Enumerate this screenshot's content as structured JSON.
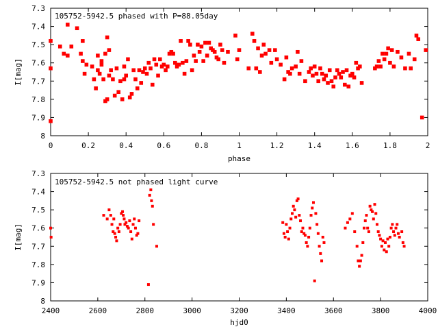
{
  "chart_data": [
    {
      "type": "scatter",
      "title": "105752-5942.5 phased with P=88.05day",
      "xlabel": "phase",
      "ylabel": "I[mag]",
      "xlim": [
        0,
        2
      ],
      "ylim": [
        8.0,
        7.3
      ],
      "y_inverted": true,
      "xticks": [
        "0",
        "0.2",
        "0.4",
        "0.6",
        "0.8",
        "1",
        "1.2",
        "1.4",
        "1.6",
        "1.8",
        "2"
      ],
      "yticks": [
        "7.3",
        "7.4",
        "7.5",
        "7.6",
        "7.7",
        "7.8",
        "7.9",
        "8"
      ],
      "grid": false,
      "legend": "none",
      "marker_color": "#ff0000",
      "series": [
        {
          "x": [
            0.0,
            0.0,
            0.0,
            0.05,
            0.07,
            0.09,
            0.09,
            0.11,
            0.14,
            0.16,
            0.17,
            0.17,
            0.18,
            0.19,
            0.22,
            0.23,
            0.24,
            0.25,
            0.25,
            0.26,
            0.27,
            0.27,
            0.28,
            0.29,
            0.29,
            0.3,
            0.3,
            0.31,
            0.31,
            0.32,
            0.33,
            0.34,
            0.35,
            0.36,
            0.37,
            0.38,
            0.39,
            0.39,
            0.4,
            0.41,
            0.42,
            0.43,
            0.44,
            0.45,
            0.46,
            0.47,
            0.48,
            0.49,
            0.5,
            0.51,
            0.52,
            0.53,
            0.54,
            0.55,
            0.56,
            0.57,
            0.58,
            0.59,
            0.6,
            0.61,
            0.62,
            0.63,
            0.64,
            0.65,
            0.66,
            0.67,
            0.68,
            0.69,
            0.7,
            0.71,
            0.72,
            0.73,
            0.74,
            0.75,
            0.76,
            0.77,
            0.78,
            0.79,
            0.8,
            0.81,
            0.82,
            0.83,
            0.84,
            0.85,
            0.86,
            0.87,
            0.88,
            0.89,
            0.9,
            0.91,
            0.92,
            0.94,
            0.98,
            0.99,
            1.0,
            1.05,
            1.07,
            1.08,
            1.09,
            1.1,
            1.11,
            1.12,
            1.13,
            1.14,
            1.16,
            1.17,
            1.19,
            1.2,
            1.22,
            1.24,
            1.25,
            1.26,
            1.27,
            1.28,
            1.3,
            1.31,
            1.32,
            1.33,
            1.35,
            1.37,
            1.38,
            1.39,
            1.4,
            1.41,
            1.42,
            1.43,
            1.44,
            1.45,
            1.46,
            1.47,
            1.48,
            1.49,
            1.5,
            1.51,
            1.52,
            1.53,
            1.54,
            1.55,
            1.56,
            1.57,
            1.58,
            1.59,
            1.6,
            1.61,
            1.62,
            1.63,
            1.64,
            1.65,
            1.72,
            1.73,
            1.74,
            1.75,
            1.76,
            1.77,
            1.78,
            1.79,
            1.8,
            1.81,
            1.82,
            1.84,
            1.86,
            1.88,
            1.9,
            1.91,
            1.93,
            1.94,
            1.95,
            1.97,
            1.99
          ],
          "y": [
            7.92,
            7.63,
            7.48,
            7.51,
            7.55,
            7.39,
            7.56,
            7.51,
            7.41,
            7.55,
            7.59,
            7.48,
            7.66,
            7.61,
            7.62,
            7.69,
            7.74,
            7.64,
            7.56,
            7.66,
            7.61,
            7.59,
            7.69,
            7.81,
            7.55,
            7.8,
            7.46,
            7.53,
            7.67,
            7.64,
            7.69,
            7.78,
            7.63,
            7.76,
            7.7,
            7.8,
            7.69,
            7.62,
            7.67,
            7.58,
            7.79,
            7.77,
            7.64,
            7.69,
            7.74,
            7.64,
            7.71,
            7.65,
            7.63,
            7.66,
            7.6,
            7.63,
            7.72,
            7.58,
            7.61,
            7.67,
            7.58,
            7.62,
            7.61,
            7.64,
            7.62,
            7.55,
            7.54,
            7.55,
            7.6,
            7.62,
            7.61,
            7.48,
            7.6,
            7.66,
            7.59,
            7.48,
            7.5,
            7.64,
            7.56,
            7.59,
            7.5,
            7.54,
            7.51,
            7.59,
            7.49,
            7.56,
            7.49,
            7.52,
            7.53,
            7.54,
            7.57,
            7.58,
            7.5,
            7.53,
            7.6,
            7.54,
            7.45,
            7.58,
            7.53,
            7.63,
            7.44,
            7.48,
            7.63,
            7.52,
            7.65,
            7.56,
            7.5,
            7.55,
            7.53,
            7.6,
            7.53,
            7.58,
            7.61,
            7.69,
            7.57,
            7.65,
            7.66,
            7.63,
            7.62,
            7.54,
            7.66,
            7.59,
            7.7,
            7.65,
            7.63,
            7.67,
            7.62,
            7.66,
            7.7,
            7.63,
            7.66,
            7.69,
            7.67,
            7.71,
            7.64,
            7.7,
            7.73,
            7.68,
            7.64,
            7.66,
            7.68,
            7.65,
            7.72,
            7.64,
            7.73,
            7.67,
            7.66,
            7.68,
            7.6,
            7.63,
            7.62,
            7.71,
            7.63,
            7.62,
            7.59,
            7.62,
            7.55,
            7.58,
            7.55,
            7.52,
            7.6,
            7.53,
            7.62,
            7.54,
            7.57,
            7.63,
            7.55,
            7.63,
            7.58,
            7.45,
            7.47,
            7.9,
            7.53
          ]
        }
      ]
    },
    {
      "type": "scatter",
      "title": "105752-5942.5 not phased light curve",
      "xlabel": "hjd0",
      "ylabel": "I[mag]",
      "xlim": [
        2400,
        4000
      ],
      "ylim": [
        8.0,
        7.3
      ],
      "y_inverted": true,
      "xticks": [
        "2400",
        "2600",
        "2800",
        "3000",
        "3200",
        "3400",
        "3600",
        "3800",
        "4000"
      ],
      "yticks": [
        "7.3",
        "7.4",
        "7.5",
        "7.6",
        "7.7",
        "7.8",
        "7.9",
        "8"
      ],
      "grid": false,
      "legend": "none",
      "marker_color": "#ff0000",
      "series": [
        {
          "x": [
            2400,
            2402,
            2625,
            2640,
            2648,
            2655,
            2660,
            2665,
            2668,
            2672,
            2676,
            2680,
            2685,
            2690,
            2695,
            2700,
            2705,
            2708,
            2712,
            2715,
            2720,
            2725,
            2730,
            2735,
            2740,
            2745,
            2750,
            2755,
            2760,
            2765,
            2770,
            2775,
            2815,
            2820,
            2825,
            2828,
            2832,
            2836,
            2850,
            3385,
            3390,
            3395,
            3400,
            3405,
            3410,
            3415,
            3420,
            3425,
            3430,
            3435,
            3440,
            3445,
            3450,
            3455,
            3460,
            3465,
            3470,
            3475,
            3480,
            3485,
            3490,
            3495,
            3500,
            3505,
            3510,
            3515,
            3520,
            3525,
            3530,
            3535,
            3540,
            3545,
            3550,
            3555,
            3560,
            3650,
            3660,
            3670,
            3680,
            3690,
            3700,
            3705,
            3710,
            3715,
            3720,
            3725,
            3730,
            3735,
            3740,
            3745,
            3750,
            3755,
            3760,
            3765,
            3770,
            3775,
            3780,
            3785,
            3790,
            3795,
            3800,
            3805,
            3810,
            3815,
            3820,
            3825,
            3830,
            3835,
            3840,
            3845,
            3850,
            3855,
            3860,
            3865,
            3870,
            3875,
            3880,
            3890,
            3895,
            3900
          ],
          "y": [
            7.6,
            7.65,
            7.53,
            7.55,
            7.5,
            7.53,
            7.58,
            7.62,
            7.55,
            7.63,
            7.65,
            7.67,
            7.6,
            7.62,
            7.58,
            7.52,
            7.51,
            7.53,
            7.55,
            7.58,
            7.57,
            7.59,
            7.6,
            7.56,
            7.62,
            7.66,
            7.58,
            7.55,
            7.6,
            7.64,
            7.63,
            7.56,
            7.91,
            7.42,
            7.39,
            7.45,
            7.48,
            7.58,
            7.7,
            7.57,
            7.63,
            7.65,
            7.58,
            7.62,
            7.66,
            7.6,
            7.55,
            7.52,
            7.48,
            7.5,
            7.54,
            7.45,
            7.44,
            7.53,
            7.56,
            7.62,
            7.6,
            7.63,
            7.64,
            7.68,
            7.7,
            7.65,
            7.6,
            7.53,
            7.49,
            7.46,
            7.89,
            7.52,
            7.58,
            7.63,
            7.7,
            7.74,
            7.78,
            7.65,
            7.68,
            7.6,
            7.57,
            7.55,
            7.52,
            7.62,
            7.7,
            7.78,
            7.81,
            7.78,
            7.75,
            7.68,
            7.6,
            7.56,
            7.53,
            7.6,
            7.62,
            7.48,
            7.5,
            7.51,
            7.55,
            7.47,
            7.52,
            7.58,
            7.62,
            7.64,
            7.66,
            7.7,
            7.67,
            7.72,
            7.68,
            7.73,
            7.66,
            7.7,
            7.65,
            7.6,
            7.58,
            7.62,
            7.64,
            7.6,
            7.58,
            7.63,
            7.65,
            7.62,
            7.68,
            7.7
          ]
        }
      ]
    }
  ]
}
